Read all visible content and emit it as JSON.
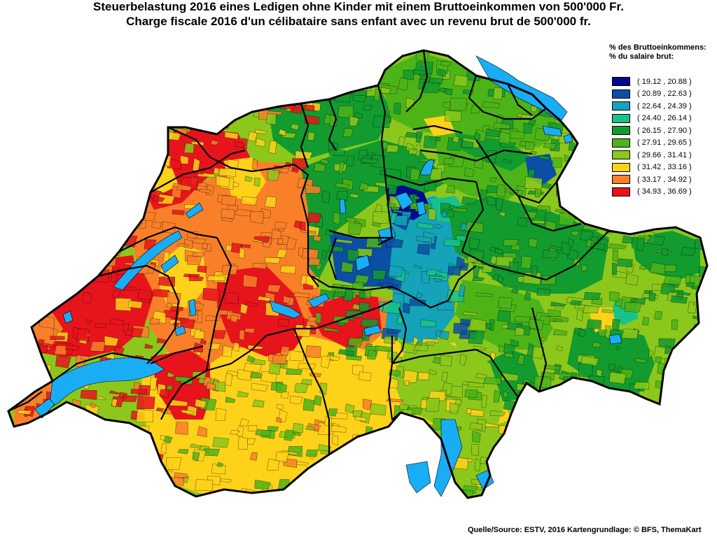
{
  "title": {
    "line1": "Steuerbelastung 2016 eines Ledigen ohne Kinder mit einem Bruttoeinkommen von 500'000 Fr.",
    "line2": "Charge fiscale 2016 d'un célibataire sans enfant avec un revenu brut de 500'000 fr."
  },
  "legend": {
    "heading_de": "% des Bruttoeinkommens:",
    "heading_fr": "% du salaire brut:",
    "classes": [
      {
        "label": "( 19.12 , 20.88 )",
        "color": "#000a8c"
      },
      {
        "label": "( 20.89 , 22.63 )",
        "color": "#0b4ea6"
      },
      {
        "label": "( 22.64 , 24.39 )",
        "color": "#14a3b8"
      },
      {
        "label": "( 24.40 , 26.14 )",
        "color": "#18c38a"
      },
      {
        "label": "( 26.15 , 27.90 )",
        "color": "#129b2f"
      },
      {
        "label": "( 27.91 , 29.65 )",
        "color": "#4db418"
      },
      {
        "label": "( 29.66 , 31.41 )",
        "color": "#8cc81b"
      },
      {
        "label": "( 31.42 , 33.16 )",
        "color": "#ffd21a"
      },
      {
        "label": "( 33.17 , 34.92 )",
        "color": "#f98029"
      },
      {
        "label": "( 34.93 , 36.69 )",
        "color": "#e8141c"
      }
    ]
  },
  "colors": {
    "lake": "#19adf5",
    "border": "#000000"
  },
  "source": "Quelle/Source: ESTV, 2016 Kartengrundlage: © BFS, ThemaKart"
}
